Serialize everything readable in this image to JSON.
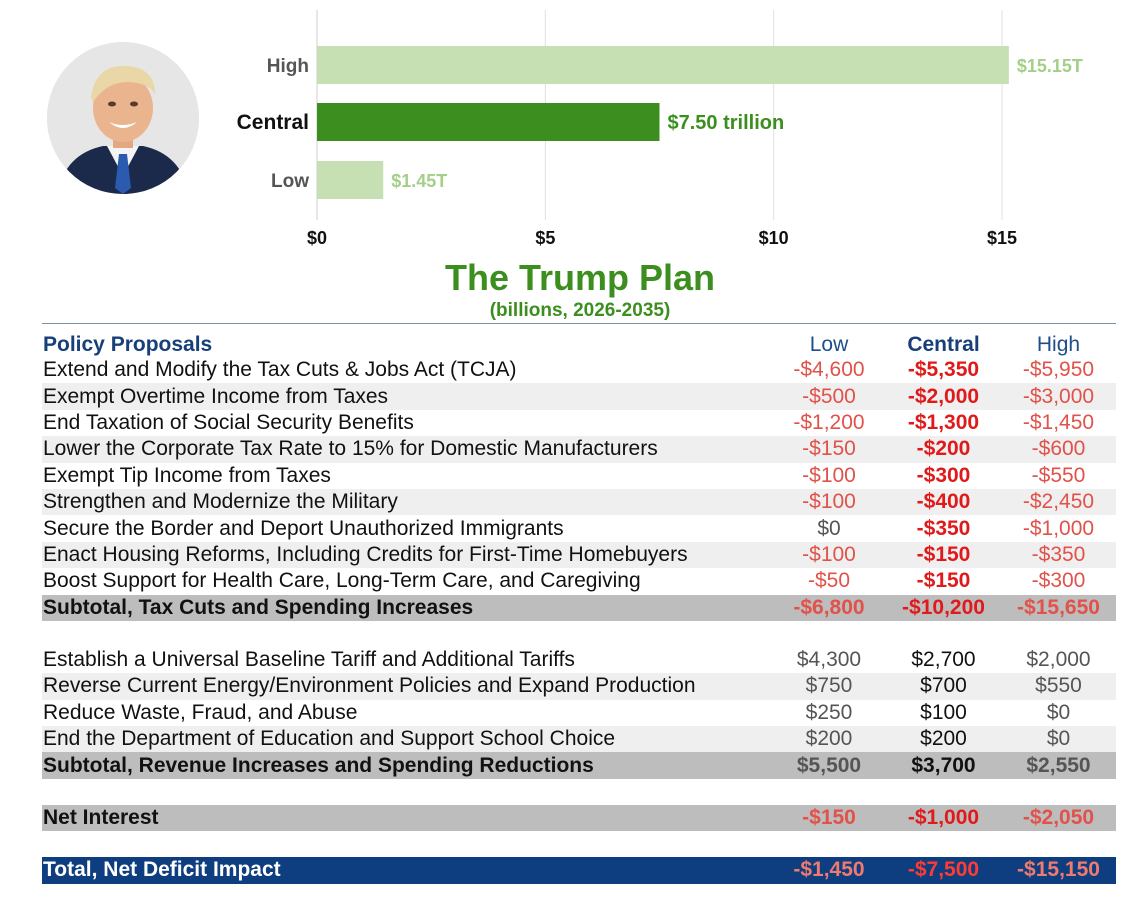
{
  "chart_data": {
    "type": "bar",
    "orientation": "horizontal",
    "categories": [
      "High",
      "Central",
      "Low"
    ],
    "values": [
      15.15,
      7.5,
      1.45
    ],
    "data_labels": [
      "$15.15T",
      "$7.50 trillion",
      "$1.45T"
    ],
    "xlim": [
      0,
      17
    ],
    "xticks": [
      0,
      5,
      10,
      15
    ],
    "xtick_labels": [
      "$0",
      "$5",
      "$10",
      "$15"
    ],
    "title": "The Trump Plan",
    "subtitle": "(billions, 2026-2035)",
    "grid": true,
    "colors": {
      "highlight": "#3c8f1f",
      "muted": "#c6e0b4",
      "highlight_label": "#3c8f1f",
      "muted_label": "#a3cf88"
    },
    "highlight_category": "Central"
  },
  "table": {
    "headers": {
      "label": "Policy Proposals",
      "low": "Low",
      "central": "Central",
      "high": "High"
    },
    "rows": [
      {
        "kind": "item",
        "label": "Extend and Modify the Tax Cuts & Jobs Act (TCJA)",
        "low": "-$4,600",
        "central": "-$5,350",
        "high": "-$5,950"
      },
      {
        "kind": "item",
        "label": "Exempt Overtime Income from Taxes",
        "low": "-$500",
        "central": "-$2,000",
        "high": "-$3,000"
      },
      {
        "kind": "item",
        "label": "End Taxation of Social Security Benefits",
        "low": "-$1,200",
        "central": "-$1,300",
        "high": "-$1,450"
      },
      {
        "kind": "item",
        "label": "Lower the Corporate Tax Rate to 15% for Domestic Manufacturers",
        "low": "-$150",
        "central": "-$200",
        "high": "-$600"
      },
      {
        "kind": "item",
        "label": "Exempt Tip Income from Taxes",
        "low": "-$100",
        "central": "-$300",
        "high": "-$550"
      },
      {
        "kind": "item",
        "label": "Strengthen and Modernize the Military",
        "low": "-$100",
        "central": "-$400",
        "high": "-$2,450"
      },
      {
        "kind": "item",
        "label": "Secure the Border and Deport Unauthorized Immigrants",
        "low": "$0",
        "central": "-$350",
        "high": "-$1,000"
      },
      {
        "kind": "item",
        "label": "Enact Housing Reforms, Including Credits for First-Time Homebuyers",
        "low": "-$100",
        "central": "-$150",
        "high": "-$350"
      },
      {
        "kind": "item",
        "label": "Boost Support for Health Care, Long-Term Care, and Caregiving",
        "low": "-$50",
        "central": "-$150",
        "high": "-$300"
      },
      {
        "kind": "sub",
        "label": "Subtotal, Tax Cuts and Spending Increases",
        "low": "-$6,800",
        "central": "-$10,200",
        "high": "-$15,650"
      },
      {
        "kind": "gap"
      },
      {
        "kind": "item",
        "label": "Establish a Universal Baseline Tariff and Additional Tariffs",
        "low": "$4,300",
        "central": "$2,700",
        "high": "$2,000"
      },
      {
        "kind": "item",
        "label": "Reverse Current Energy/Environment Policies and Expand Production",
        "low": "$750",
        "central": "$700",
        "high": "$550"
      },
      {
        "kind": "item",
        "label": "Reduce Waste, Fraud, and Abuse",
        "low": "$250",
        "central": "$100",
        "high": "$0"
      },
      {
        "kind": "item",
        "label": "End the Department of Education and Support School Choice",
        "low": "$200",
        "central": "$200",
        "high": "$0"
      },
      {
        "kind": "sub",
        "label": "Subtotal, Revenue Increases and Spending Reductions",
        "low": "$5,500",
        "central": "$3,700",
        "high": "$2,550"
      },
      {
        "kind": "gap"
      },
      {
        "kind": "sub",
        "label": "Net Interest",
        "low": "-$150",
        "central": "-$1,000",
        "high": "-$2,050"
      },
      {
        "kind": "gap"
      },
      {
        "kind": "total",
        "label": "Total, Net Deficit Impact",
        "low": "-$1,450",
        "central": "-$7,500",
        "high": "-$15,150"
      }
    ]
  }
}
